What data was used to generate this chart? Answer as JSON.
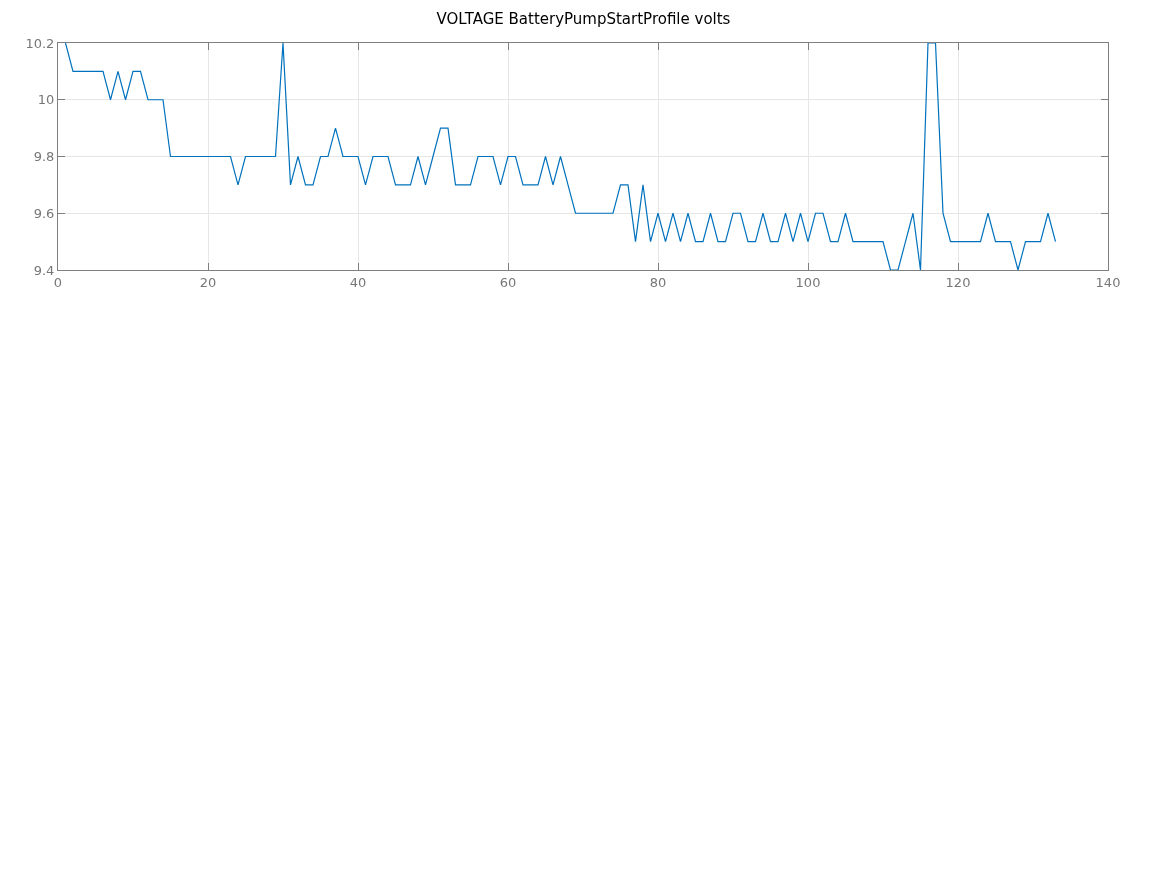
{
  "chart_data": {
    "type": "line",
    "title": "VOLTAGE BatteryPumpStartProfile volts",
    "x": [
      1,
      2,
      3,
      4,
      5,
      6,
      7,
      8,
      9,
      10,
      11,
      12,
      13,
      14,
      15,
      16,
      17,
      18,
      19,
      20,
      21,
      22,
      23,
      24,
      25,
      26,
      27,
      28,
      29,
      30,
      31,
      32,
      33,
      34,
      35,
      36,
      37,
      38,
      39,
      40,
      41,
      42,
      43,
      44,
      45,
      46,
      47,
      48,
      49,
      50,
      51,
      52,
      53,
      54,
      55,
      56,
      57,
      58,
      59,
      60,
      61,
      62,
      63,
      64,
      65,
      66,
      67,
      68,
      69,
      70,
      71,
      72,
      73,
      74,
      75,
      76,
      77,
      78,
      79,
      80,
      81,
      82,
      83,
      84,
      85,
      86,
      87,
      88,
      89,
      90,
      91,
      92,
      93,
      94,
      95,
      96,
      97,
      98,
      99,
      100,
      101,
      102,
      103,
      104,
      105,
      106,
      107,
      108,
      109,
      110,
      111,
      112,
      113,
      114,
      115,
      116,
      117,
      118,
      119,
      120,
      121,
      122,
      123,
      124,
      125,
      126,
      127,
      128,
      129,
      130,
      131,
      132,
      133
    ],
    "series": [
      {
        "color": "#0072bd",
        "values": [
          10.2,
          10.1,
          10.1,
          10.1,
          10.1,
          10.1,
          10.0,
          10.1,
          10.0,
          10.1,
          10.1,
          10.0,
          10.0,
          10.0,
          9.8,
          9.8,
          9.8,
          9.8,
          9.8,
          9.8,
          9.8,
          9.8,
          9.8,
          9.7,
          9.8,
          9.8,
          9.8,
          9.8,
          9.8,
          10.2,
          9.7,
          9.8,
          9.7,
          9.7,
          9.8,
          9.8,
          9.9,
          9.8,
          9.8,
          9.8,
          9.7,
          9.8,
          9.8,
          9.8,
          9.7,
          9.7,
          9.7,
          9.8,
          9.7,
          9.8,
          9.9,
          9.9,
          9.7,
          9.7,
          9.7,
          9.8,
          9.8,
          9.8,
          9.7,
          9.8,
          9.8,
          9.7,
          9.7,
          9.7,
          9.8,
          9.7,
          9.8,
          9.7,
          9.6,
          9.6,
          9.6,
          9.6,
          9.6,
          9.6,
          9.7,
          9.7,
          9.5,
          9.7,
          9.5,
          9.6,
          9.5,
          9.6,
          9.5,
          9.6,
          9.5,
          9.5,
          9.6,
          9.5,
          9.5,
          9.6,
          9.6,
          9.5,
          9.5,
          9.6,
          9.5,
          9.5,
          9.6,
          9.5,
          9.6,
          9.5,
          9.6,
          9.6,
          9.5,
          9.5,
          9.6,
          9.5,
          9.5,
          9.5,
          9.5,
          9.5,
          9.4,
          9.4,
          9.5,
          9.6,
          9.4,
          10.2,
          10.2,
          9.6,
          9.5,
          9.5,
          9.5,
          9.5,
          9.5,
          9.6,
          9.5,
          9.5,
          9.5,
          9.4,
          9.5,
          9.5,
          9.5,
          9.6,
          9.5
        ]
      }
    ],
    "xlim": [
      0,
      140
    ],
    "xticks": [
      0,
      20,
      40,
      60,
      80,
      100,
      120,
      140
    ],
    "ylim": [
      9.4,
      10.2
    ],
    "yticks": [
      9.4,
      9.6,
      9.8,
      {
        "value": 10,
        "label": "10"
      },
      10.2
    ],
    "grid": true,
    "marker": "none",
    "line_style": "solid"
  }
}
